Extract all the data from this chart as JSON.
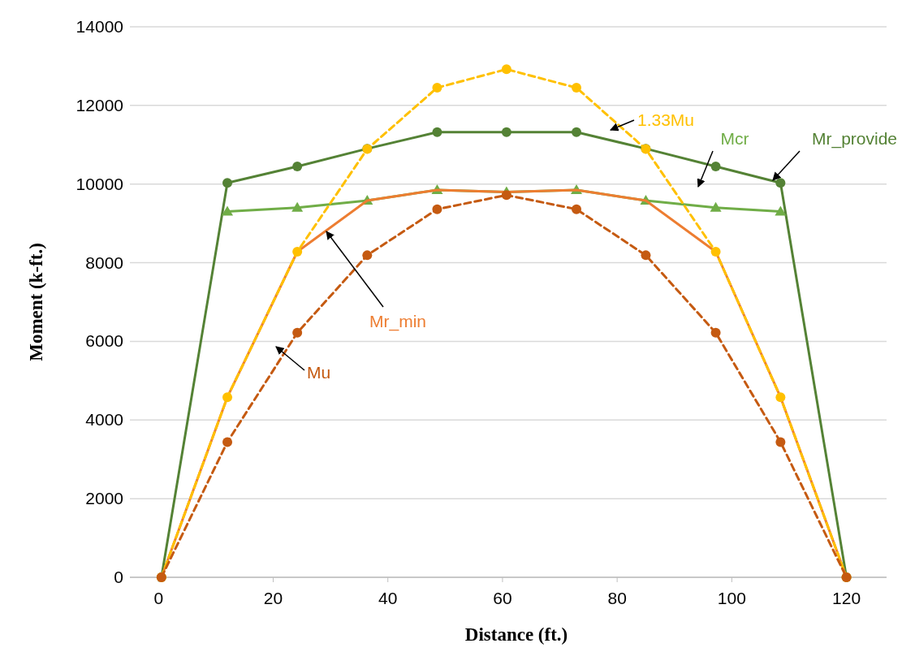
{
  "chart_data": {
    "type": "line",
    "xlabel": "Distance (ft.)",
    "ylabel": "Moment (k-ft.)",
    "xlim": [
      -5,
      127
    ],
    "xticks": [
      0,
      20,
      40,
      60,
      80,
      100,
      120
    ],
    "ylim": [
      0,
      14000
    ],
    "yticks": [
      0,
      2000,
      4000,
      6000,
      8000,
      10000,
      12000,
      14000
    ],
    "grid": "y",
    "series": [
      {
        "name": "Mr_provide",
        "color": "#548235",
        "marker": "circle",
        "line_style": "solid",
        "x": [
          0.5,
          12,
          24.2,
          36.4,
          48.6,
          60.7,
          72.9,
          85,
          97.2,
          108.5,
          120
        ],
        "values": [
          0,
          10030,
          10450,
          10900,
          11320,
          11320,
          11320,
          10900,
          10450,
          10030,
          0
        ]
      },
      {
        "name": "Mcr",
        "color": "#70ad47",
        "marker": "triangle",
        "line_style": "solid",
        "x": [
          12,
          24.2,
          36.4,
          48.6,
          60.7,
          72.9,
          85,
          97.2,
          108.5
        ],
        "values": [
          9300,
          9400,
          9580,
          9850,
          9800,
          9850,
          9580,
          9400,
          9300
        ]
      },
      {
        "name": "Mr_min",
        "color": "#ed7d31",
        "marker": "none",
        "line_style": "solid",
        "x": [
          0.5,
          12,
          24.2,
          36.4,
          48.6,
          60.7,
          72.9,
          85,
          97.2,
          108.5,
          120
        ],
        "values": [
          0,
          4580,
          8280,
          9580,
          9850,
          9800,
          9850,
          9580,
          8280,
          4580,
          0
        ]
      },
      {
        "name": "1.33Mu",
        "color": "#ffc000",
        "marker": "circle",
        "line_style": "dashed",
        "x": [
          0.5,
          12,
          24.2,
          36.4,
          48.6,
          60.7,
          72.9,
          85,
          97.2,
          108.5,
          120
        ],
        "values": [
          0,
          4580,
          8280,
          10890,
          12450,
          12920,
          12450,
          10890,
          8280,
          4580,
          0
        ]
      },
      {
        "name": "Mu",
        "color": "#c55a11",
        "marker": "circle",
        "line_style": "dashed",
        "x": [
          0.5,
          12,
          24.2,
          36.4,
          48.6,
          60.7,
          72.9,
          85,
          97.2,
          108.5,
          120
        ],
        "values": [
          0,
          3440,
          6220,
          8190,
          9360,
          9720,
          9360,
          8190,
          6220,
          3440,
          0
        ]
      }
    ]
  }
}
